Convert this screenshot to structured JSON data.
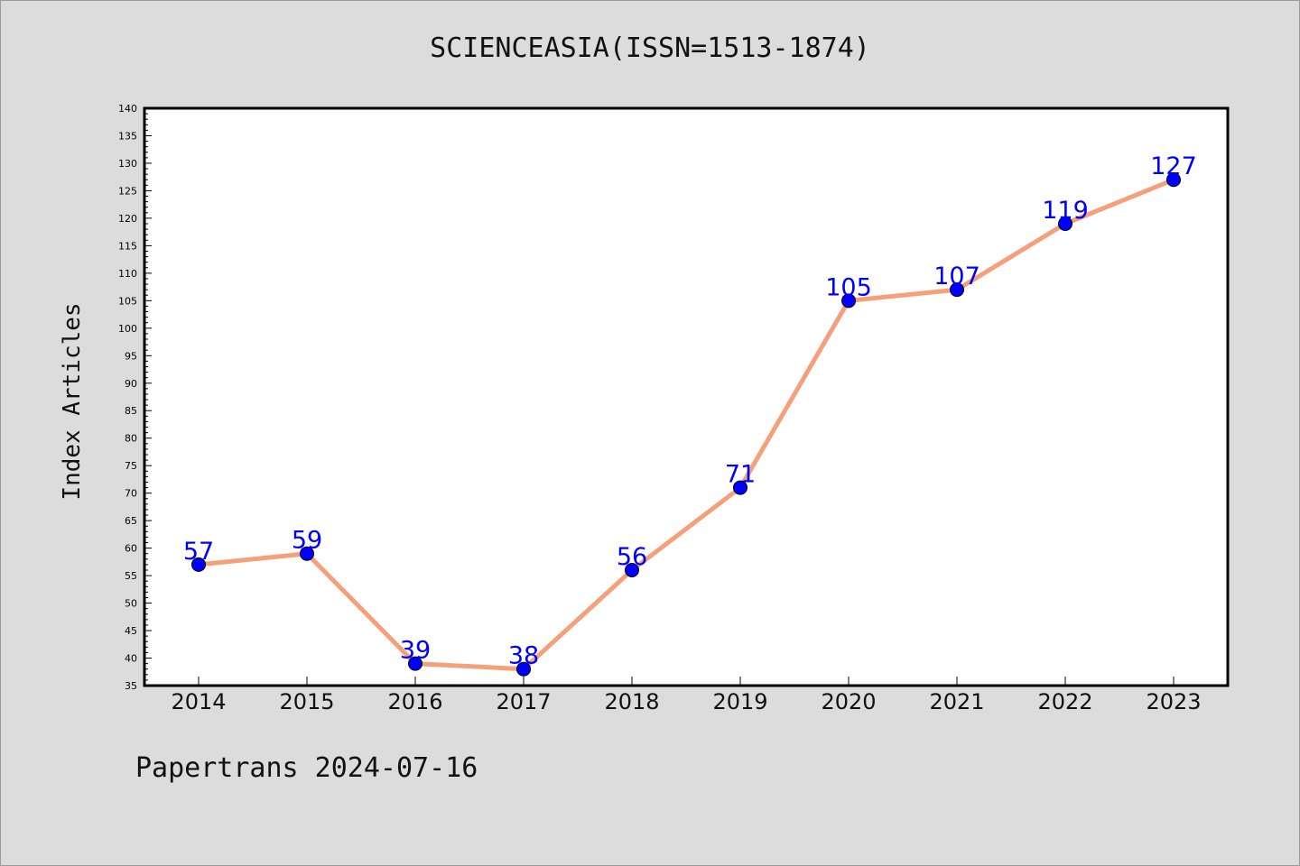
{
  "title": "SCIENCEASIA(ISSN=1513-1874)",
  "footer": "Papertrans 2024-07-16",
  "colors": {
    "background": "#dcdcdc",
    "plot_background": "#ffffff",
    "line": "#f4a07a",
    "marker": "#0000ff",
    "label": "#0000ff"
  },
  "chart_data": {
    "type": "line",
    "ylabel": "Index Articles",
    "xlabel": "",
    "categories": [
      "2014",
      "2015",
      "2016",
      "2017",
      "2018",
      "2019",
      "2020",
      "2021",
      "2022",
      "2023"
    ],
    "series": [
      {
        "values": [
          57,
          59,
          39,
          38,
          56,
          71,
          105,
          107,
          119,
          127
        ]
      }
    ],
    "ylim": [
      35,
      140
    ],
    "yticks": [
      35,
      40,
      45,
      50,
      55,
      60,
      65,
      70,
      75,
      80,
      85,
      90,
      95,
      100,
      105,
      110,
      115,
      120,
      125,
      130,
      135,
      140
    ],
    "data_labels": true,
    "grid": false
  }
}
